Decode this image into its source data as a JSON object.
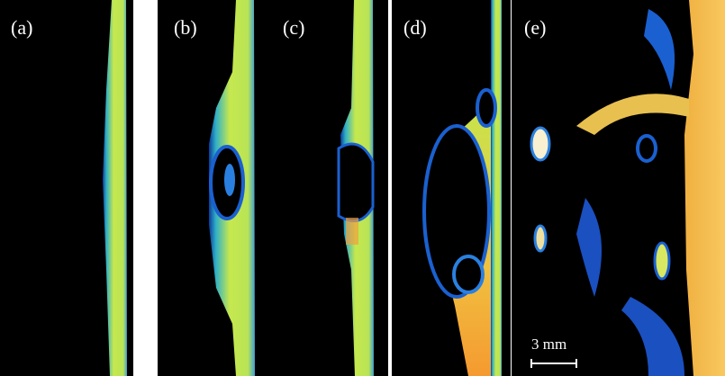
{
  "panels": [
    {
      "label": "(a)"
    },
    {
      "label": "(b)"
    },
    {
      "label": "(c)"
    },
    {
      "label": "(d)"
    },
    {
      "label": "(e)"
    }
  ],
  "scale_bar": {
    "label": "3 mm"
  }
}
